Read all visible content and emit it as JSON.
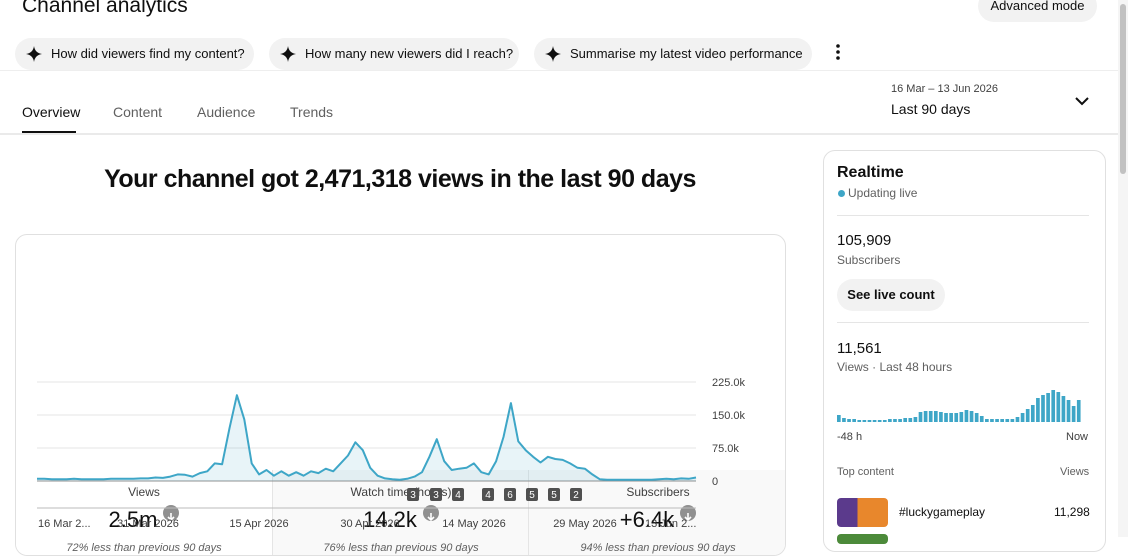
{
  "header": {
    "title": "Channel analytics",
    "advanced_mode": "Advanced mode"
  },
  "prompts": [
    "How did viewers find my content?",
    "How many new viewers did I reach?",
    "Summarise my latest video performance"
  ],
  "tabs": [
    "Overview",
    "Content",
    "Audience",
    "Trends"
  ],
  "date_range": {
    "dates": "16 Mar – 13 Jun 2026",
    "label": "Last 90 days"
  },
  "headline": "Your channel got 2,471,318 views in the last 90 days",
  "metrics": [
    {
      "label": "Views",
      "value": "2.5m",
      "note": "72% less than previous 90 days"
    },
    {
      "label": "Watch time (hours)",
      "value": "14.2k",
      "note": "76% less than previous 90 days"
    },
    {
      "label": "Subscribers",
      "value": "+6.4k",
      "note": "94% less than previous 90 days"
    }
  ],
  "views_chart": {
    "type": "line",
    "color": "#3ea6c7",
    "values": [
      5000,
      5000,
      4000,
      4000,
      4000,
      5000,
      4000,
      4000,
      4000,
      4000,
      5000,
      5000,
      5000,
      5000,
      6000,
      6000,
      8000,
      7000,
      10000,
      15000,
      14000,
      10000,
      18000,
      22000,
      40000,
      38000,
      120000,
      195000,
      140000,
      40000,
      15000,
      25000,
      12000,
      22000,
      12000,
      20000,
      12000,
      22000,
      18000,
      28000,
      22000,
      40000,
      58000,
      88000,
      70000,
      30000,
      12000,
      6000,
      4000,
      3000,
      5000,
      10000,
      20000,
      55000,
      95000,
      45000,
      25000,
      28000,
      30000,
      40000,
      20000,
      15000,
      45000,
      100000,
      177000,
      90000,
      70000,
      55000,
      42000,
      55000,
      50000,
      48000,
      40000,
      30000,
      28000,
      15000,
      4000,
      3000,
      3000,
      3000,
      3000,
      3000,
      3000,
      3000,
      4000,
      5000,
      4000,
      6000,
      5000,
      8000
    ],
    "ylim": [
      0,
      225000
    ],
    "yticks": [
      0,
      {
        "value": 75000,
        "label": "75.0k"
      },
      {
        "value": 150000,
        "label": "150.0k"
      },
      {
        "value": 225000,
        "label": "225.0k"
      }
    ],
    "xtick_labels": [
      "16 Mar 2...",
      "31 Mar 2026",
      "15 Apr 2026",
      "30 Apr 2026",
      "14 May 2026",
      "29 May 2026",
      "13 Jun 2..."
    ],
    "upload_counts": [
      3,
      3,
      4,
      4,
      6,
      5,
      5,
      2
    ]
  },
  "realtime": {
    "title": "Realtime",
    "status": "Updating live",
    "subscribers": "105,909",
    "subscribers_label": "Subscribers",
    "live_button": "See live count",
    "views": "11,561",
    "views_label": "Views · Last 48 hours",
    "bars": [
      175,
      100,
      75,
      75,
      50,
      50,
      50,
      50,
      50,
      50,
      75,
      75,
      75,
      100,
      100,
      125,
      250,
      275,
      275,
      275,
      250,
      225,
      225,
      225,
      250,
      300,
      275,
      225,
      150,
      75,
      75,
      75,
      75,
      75,
      75,
      125,
      225,
      325,
      425,
      600,
      675,
      725,
      800,
      750,
      650,
      550,
      400,
      550
    ],
    "bars_color": "#3ea6c7",
    "axis_start": "-48 h",
    "axis_end": "Now",
    "top_content_label": "Top content",
    "views_column": "Views",
    "top_content": [
      {
        "title": "#luckygameplay",
        "views": "11,298"
      }
    ]
  }
}
